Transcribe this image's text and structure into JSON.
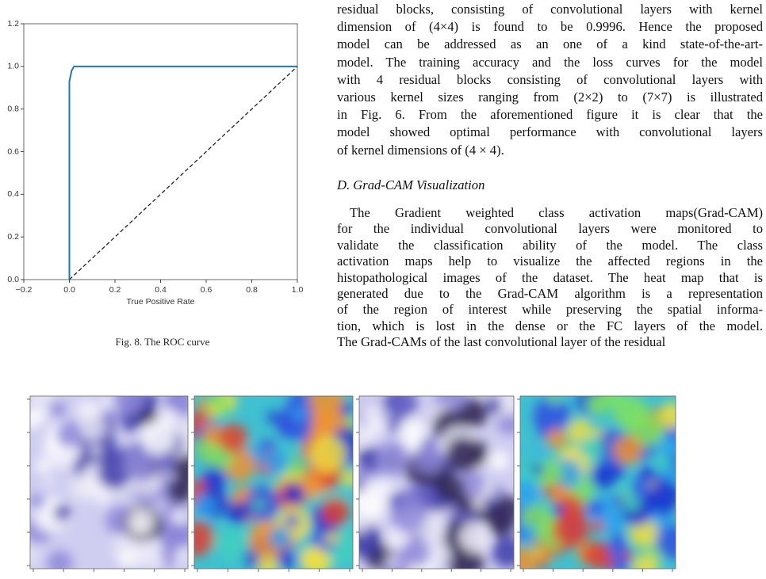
{
  "chart_data": {
    "type": "line",
    "x": [
      0,
      0,
      0.01,
      0.02,
      1
    ],
    "series": [
      {
        "color": "#1f77b4",
        "values": [
          0,
          0.93,
          0.98,
          1,
          1
        ]
      }
    ],
    "reference_line": {
      "x": [
        0,
        1
      ],
      "values": [
        0,
        1
      ],
      "color": "#222222",
      "dashed": true
    },
    "xlabel": "True Positive Rate",
    "xlim": [
      -0.2,
      1.0
    ],
    "xticks": [
      {
        "value": -0.2,
        "label": "−0.2"
      },
      {
        "value": 0,
        "label": "0.0"
      },
      {
        "value": 0.2,
        "label": "0.2"
      },
      {
        "value": 0.4,
        "label": "0.4"
      },
      {
        "value": 0.6,
        "label": "0.6"
      },
      {
        "value": 0.8,
        "label": "0.8"
      },
      {
        "value": 1,
        "label": "1.0"
      }
    ],
    "ylim": [
      0,
      1.2
    ],
    "yticks": [
      {
        "value": 0,
        "label": "0.0"
      },
      {
        "value": 0.2,
        "label": "0.2"
      },
      {
        "value": 0.4,
        "label": "0.4"
      },
      {
        "value": 0.6,
        "label": "0.6"
      },
      {
        "value": 0.8,
        "label": "0.8"
      },
      {
        "value": 1,
        "label": "1.0"
      },
      {
        "value": 1.2,
        "label": "1.2"
      }
    ]
  },
  "figure_caption": "Fig. 8.   The ROC curve",
  "section_heading": "D.  Grad-CAM Visualization",
  "paragraphs": [
    [
      "residual blocks, consisting of convolutional layers with kernel",
      "dimension of (4×4) is found to be 0.9996. Hence the proposed",
      "model can be addressed as an one of a kind state-of-the-art-",
      "model. The training accuracy and the loss curves for the model",
      "with 4 residual blocks consisting of convolutional layers with",
      "various kernel sizes ranging from (2×2) to (7×7) is illustrated",
      "in Fig. 6. From the aforementioned figure it is clear that the",
      "model showed optimal performance with convolutional layers",
      "of kernel dimensions of (4 × 4)."
    ],
    [
      "The Gradient weighted class activation maps(Grad-CAM)",
      "for the individual convolutional layers were monitored to",
      "validate the classification ability of the model. The class",
      "activation maps help to visualize the affected regions in the",
      "histopathological images of the dataset. The heat map that is",
      "generated due to the Grad-CAM algorithm is a representation",
      "of the region of interest while preserving the spatial informa-",
      "tion, which is lost in the dense or the FC layers of the model.",
      "The Grad-CAMs of the last convolutional layer of the residual"
    ]
  ]
}
